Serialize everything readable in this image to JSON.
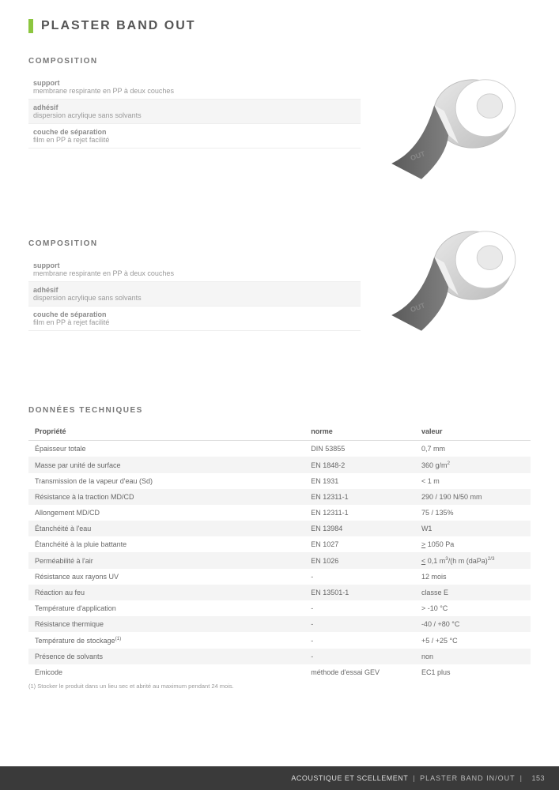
{
  "title": "PLASTER BAND OUT",
  "comp_heading": "COMPOSITION",
  "comp": [
    {
      "term": "support",
      "desc": "membrane respirante en PP à deux couches",
      "shade": false
    },
    {
      "term": "adhésif",
      "desc": "dispersion acrylique sans solvants",
      "shade": true
    },
    {
      "term": "couche de séparation",
      "desc": "film en PP à rejet facilité",
      "shade": false
    }
  ],
  "tech_heading": "DONNÉES TECHNIQUES",
  "tech_headers": {
    "prop": "Propriété",
    "norm": "norme",
    "val": "valeur"
  },
  "tech_rows": [
    {
      "prop": "Épaisseur totale",
      "norm": "DIN 53855",
      "val": "0,7 mm"
    },
    {
      "prop": "Masse par unité de surface",
      "norm": "EN 1848-2",
      "val": "360 g/m<sup>2</sup>"
    },
    {
      "prop": "Transmission de la vapeur d'eau (Sd)",
      "norm": "EN 1931",
      "val": "< 1 m"
    },
    {
      "prop": "Résistance à la traction MD/CD",
      "norm": "EN 12311-1",
      "val": "290 / 190 N/50 mm"
    },
    {
      "prop": "Allongement MD/CD",
      "norm": "EN 12311-1",
      "val": "75 / 135%"
    },
    {
      "prop": "Étanchéité à l'eau",
      "norm": "EN 13984",
      "val": "W1"
    },
    {
      "prop": "Étanchéité à la pluie battante",
      "norm": "EN 1027",
      "val": "<u>></u> 1050 Pa"
    },
    {
      "prop": "Perméabilité à l'air",
      "norm": "EN 1026",
      "val": "<u><</u> 0,1 m<sup>3</sup>/(h m (daPa)<sup>2/3</sup>"
    },
    {
      "prop": "Résistance aux rayons UV",
      "norm": "-",
      "val": "12 mois"
    },
    {
      "prop": "Réaction au feu",
      "norm": "EN 13501-1",
      "val": "classe E"
    },
    {
      "prop": "Température d'application",
      "norm": "-",
      "val": "> -10 °C"
    },
    {
      "prop": "Résistance thermique",
      "norm": "-",
      "val": "-40 / +80 °C"
    },
    {
      "prop": "Température de stockage<sup>(1)</sup>",
      "norm": "-",
      "val": "+5 / +25 °C"
    },
    {
      "prop": "Présence de solvants",
      "norm": "-",
      "val": "non"
    },
    {
      "prop": "Emicode",
      "norm": "méthode d'essai GEV",
      "val": "EC1 plus"
    }
  ],
  "footnote": "(1) Stocker le produit dans un lieu sec et abrité au maximum pendant 24 mois.",
  "roll_label": {
    "brand": "PLASTER BAND",
    "variant": "OUT"
  },
  "footer": {
    "section": "ACOUSTIQUE ET SCELLEMENT",
    "product": "PLASTER BAND IN/OUT",
    "page": "153"
  },
  "colors": {
    "accent": "#8cc63f",
    "text": "#555555",
    "muted": "#999999",
    "row_alt": "#f4f4f4",
    "footer_bg": "#3a3a3a"
  }
}
